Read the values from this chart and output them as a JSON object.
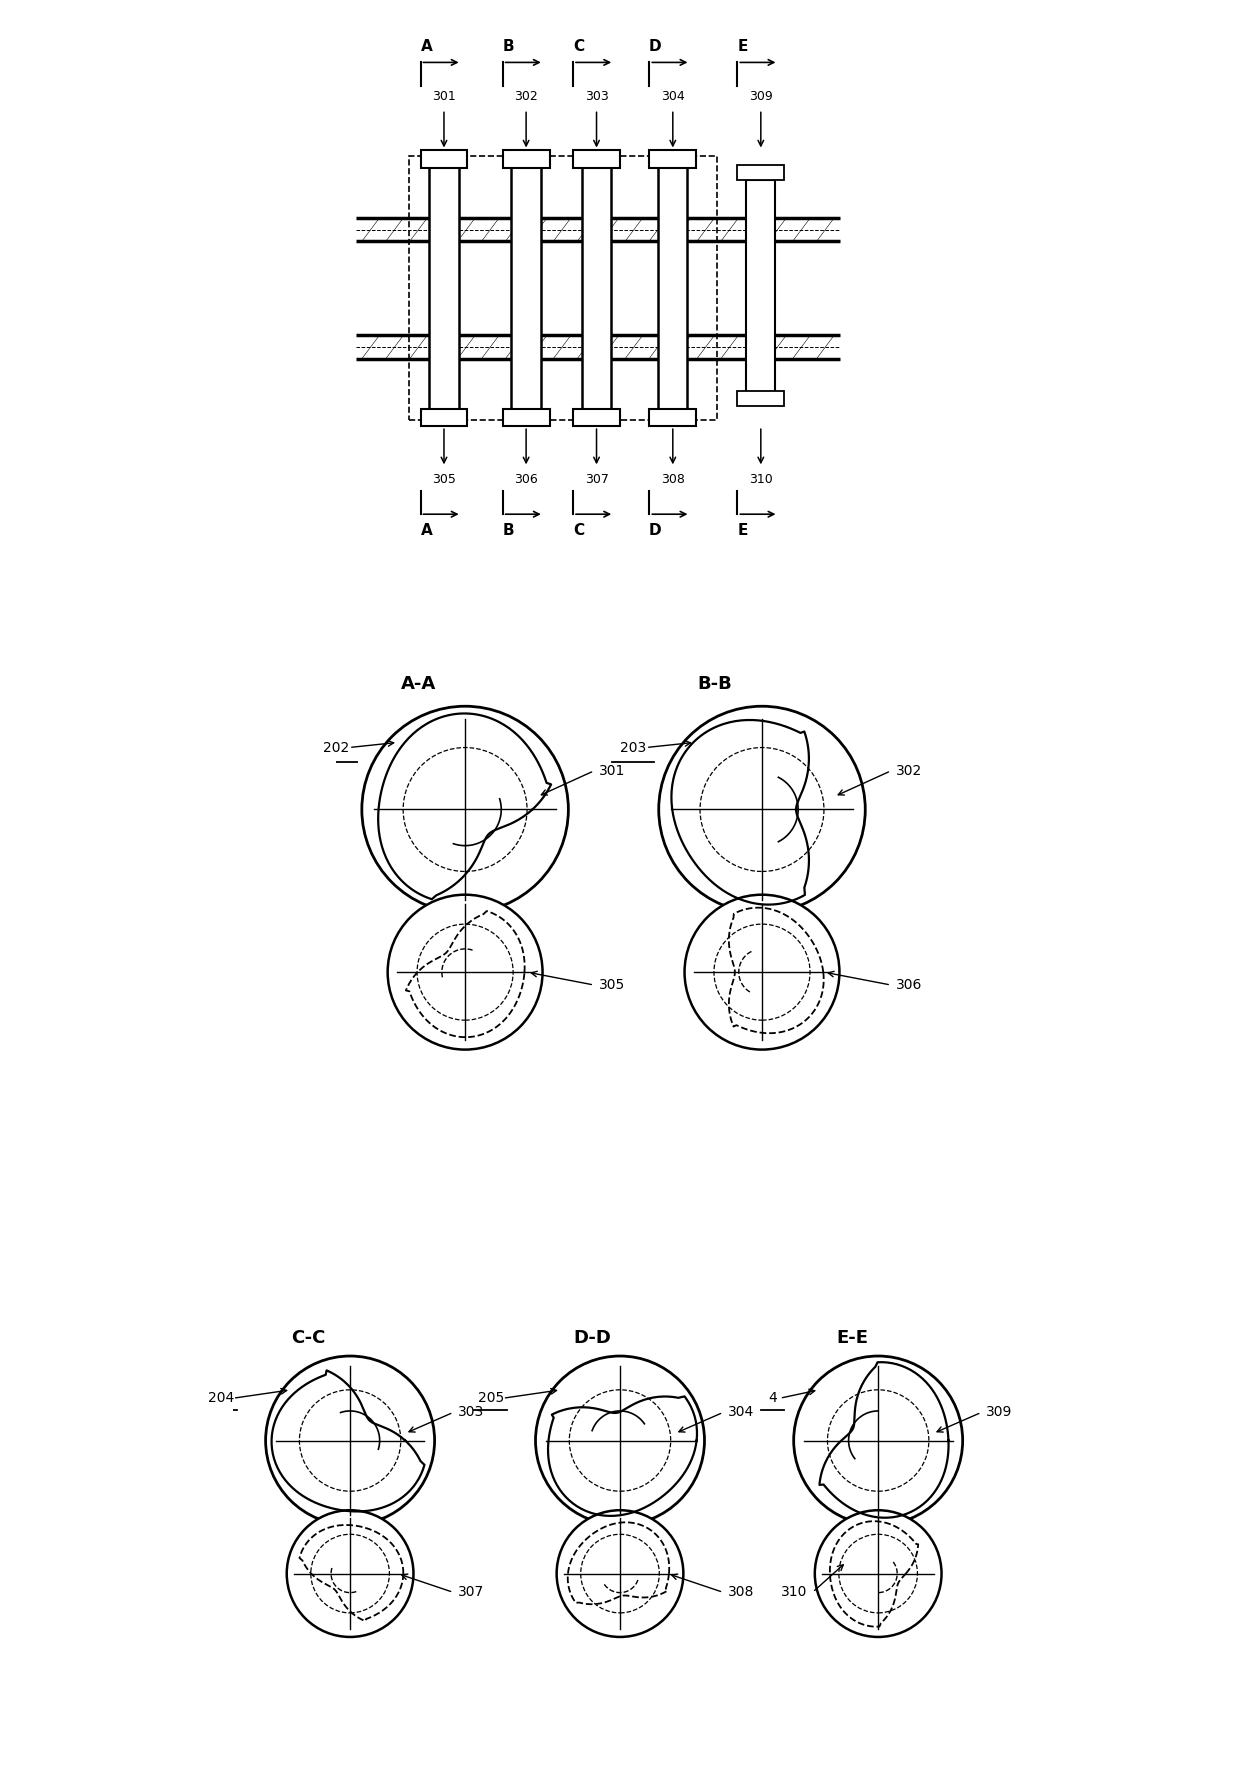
{
  "bg_color": "#ffffff",
  "line_color": "#000000",
  "fig_width": 12.4,
  "fig_height": 17.87,
  "dpi": 100,
  "section_labels_top": [
    "A",
    "B",
    "C",
    "D",
    "E"
  ],
  "ref_numbers_top": [
    "301",
    "302",
    "303",
    "304",
    "309"
  ],
  "ref_numbers_bottom": [
    "305",
    "306",
    "307",
    "308",
    "310"
  ],
  "cross_sections": [
    {
      "label": "A-A",
      "housing": "202",
      "rotor_top": "301",
      "rotor_bot": "305"
    },
    {
      "label": "B-B",
      "housing": "203",
      "rotor_top": "302",
      "rotor_bot": "306"
    },
    {
      "label": "C-C",
      "housing": "204",
      "rotor_top": "303",
      "rotor_bot": "307"
    },
    {
      "label": "D-D",
      "housing": "205",
      "rotor_top": "304",
      "rotor_bot": "308"
    },
    {
      "label": "E-E",
      "housing": "4",
      "rotor_top": "309",
      "rotor_bot": "310"
    }
  ]
}
